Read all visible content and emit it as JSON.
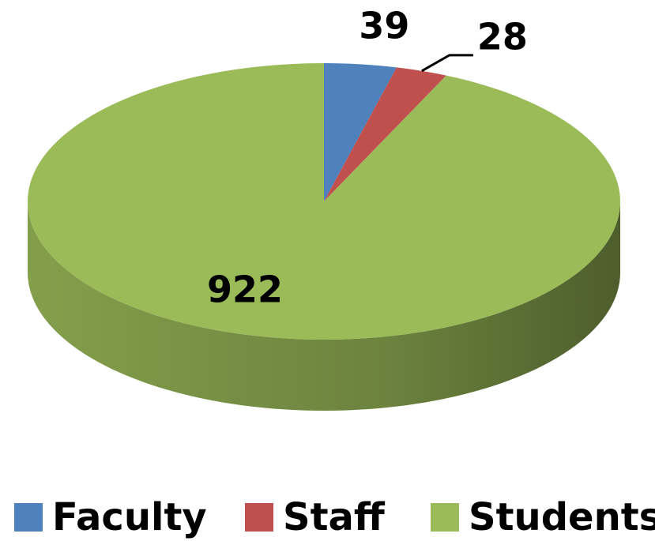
{
  "chart_data": {
    "type": "pie",
    "categories": [
      "Faculty",
      "Staff",
      "Students"
    ],
    "values": [
      39,
      28,
      922
    ],
    "colors": [
      "#4f81bd",
      "#c0504d",
      "#9bbb59"
    ],
    "legend": "bottom"
  }
}
